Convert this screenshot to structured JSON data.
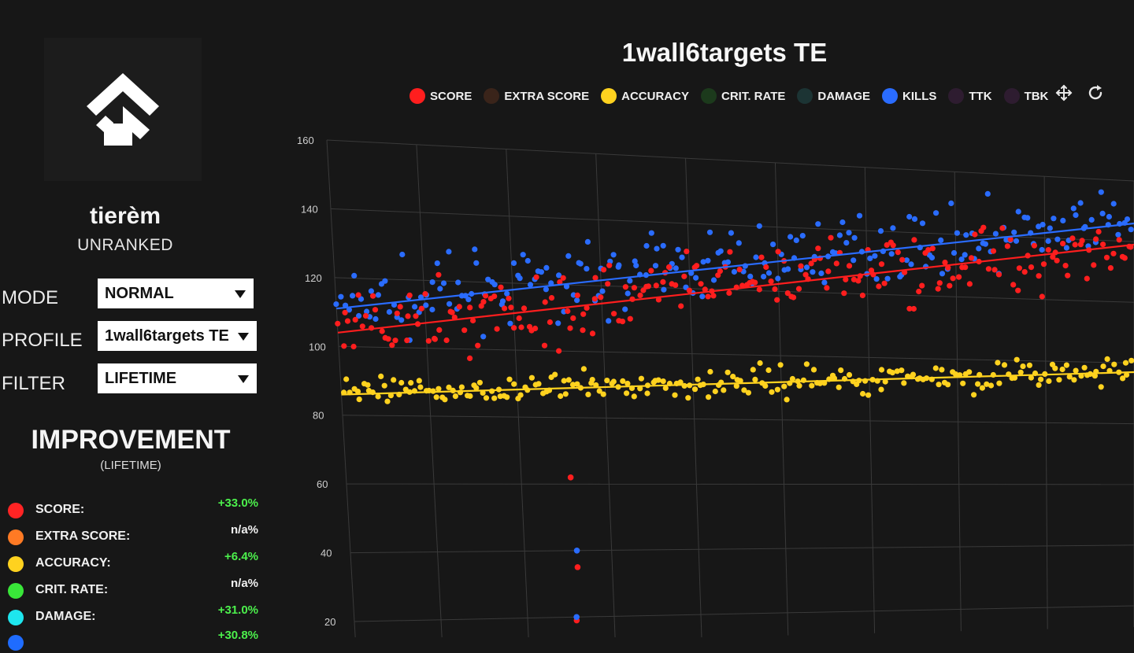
{
  "profile": {
    "username": "tierèm",
    "rank": "UNRANKED",
    "logo_icon": "aimlabs-logo-icon"
  },
  "controls": {
    "mode": {
      "label": "MODE",
      "value": "NORMAL"
    },
    "profile": {
      "label": "PROFILE",
      "value": "1wall6targets TE"
    },
    "filter": {
      "label": "FILTER",
      "value": "LIFETIME"
    }
  },
  "improvement": {
    "title": "IMPROVEMENT",
    "subtitle": "(LIFETIME)",
    "stats": [
      {
        "label": "SCORE:",
        "value": "+33.0%",
        "color": "#ff2424",
        "value_color": "#4cf04c"
      },
      {
        "label": "EXTRA SCORE:",
        "value": "n/a%",
        "color": "#ff7a24",
        "value_color": "#f0f0f0"
      },
      {
        "label": "ACCURACY:",
        "value": "+6.4%",
        "color": "#ffd21f",
        "value_color": "#4cf04c"
      },
      {
        "label": "CRIT. RATE:",
        "value": "n/a%",
        "color": "#39e639",
        "value_color": "#f0f0f0"
      },
      {
        "label": "DAMAGE:",
        "value": "+31.0%",
        "color": "#1ee6ee",
        "value_color": "#4cf04c"
      },
      {
        "label": "",
        "value": "+30.8%",
        "color": "#1f6cff",
        "value_color": "#4cf04c"
      }
    ]
  },
  "chart": {
    "title": "1wall6targets TE",
    "legend": [
      {
        "label": "SCORE",
        "color": "#ff1e1e"
      },
      {
        "label": "EXTRA SCORE",
        "color": "#3a241a"
      },
      {
        "label": "ACCURACY",
        "color": "#ffd21f"
      },
      {
        "label": "CRIT. RATE",
        "color": "#1c3a1c"
      },
      {
        "label": "DAMAGE",
        "color": "#1c3434"
      },
      {
        "label": "KILLS",
        "color": "#2a6cff"
      },
      {
        "label": "TTK",
        "color": "#2e1c30"
      },
      {
        "label": "TBK",
        "color": "#2e1c30"
      }
    ],
    "tools": [
      "pan-icon",
      "reset-icon"
    ]
  },
  "chart_data": {
    "type": "scatter",
    "y_ticks": [
      "20",
      "40",
      "60",
      "80",
      "100",
      "120",
      "140",
      "160"
    ],
    "ylim": [
      20,
      160
    ],
    "grid": true,
    "series": [
      {
        "name": "KILLS",
        "color": "#2a6cff",
        "trend": [
          111,
          146
        ],
        "spread": 9
      },
      {
        "name": "SCORE",
        "color": "#ff1e1e",
        "trend": [
          104,
          139
        ],
        "spread": 10
      },
      {
        "name": "ACCURACY",
        "color": "#ffd21f",
        "trend": [
          86,
          97
        ],
        "spread": 4
      }
    ],
    "outliers": [
      {
        "series": "SCORE",
        "y": 62
      },
      {
        "series": "SCORE",
        "y": 35
      },
      {
        "series": "SCORE",
        "y": 19
      },
      {
        "series": "KILLS",
        "y": 40
      },
      {
        "series": "KILLS",
        "y": 20
      }
    ]
  }
}
